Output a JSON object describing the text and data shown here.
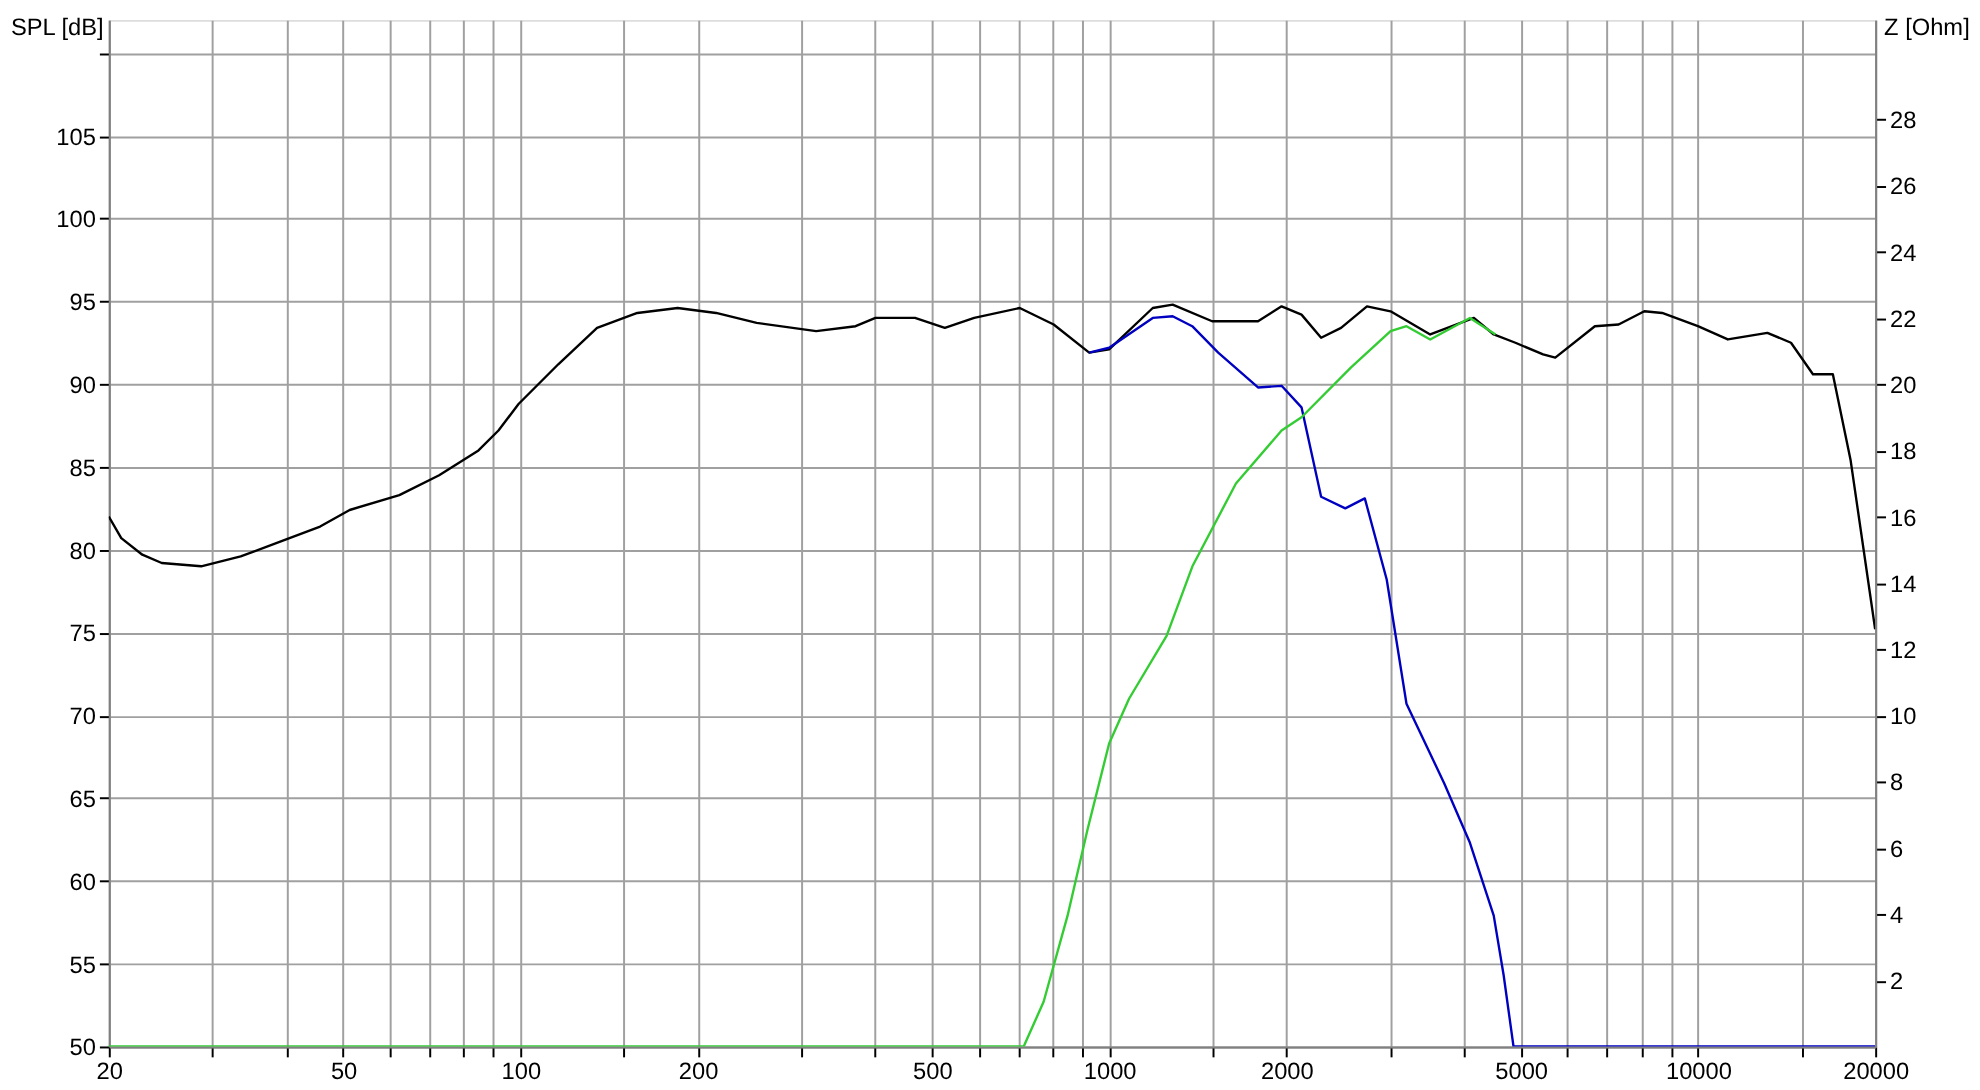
{
  "chart_data": {
    "type": "line",
    "ylabel": "SPL [dB]",
    "y2label": "Z [Ohm]",
    "log": "x",
    "grid": true,
    "legend": false,
    "marker": "none",
    "line_style": "solid",
    "xlim": [
      20,
      20000
    ],
    "xticks": [
      20,
      {
        "value": 30,
        "label": null
      },
      {
        "value": 40,
        "label": null
      },
      50,
      {
        "value": 60,
        "label": null
      },
      {
        "value": 70,
        "label": null
      },
      {
        "value": 80,
        "label": null
      },
      {
        "value": 90,
        "label": null
      },
      100,
      {
        "value": 150,
        "label": null
      },
      200,
      {
        "value": 300,
        "label": null
      },
      {
        "value": 400,
        "label": null
      },
      500,
      {
        "value": 600,
        "label": null
      },
      {
        "value": 700,
        "label": null
      },
      {
        "value": 800,
        "label": null
      },
      {
        "value": 900,
        "label": null
      },
      1000,
      {
        "value": 1500,
        "label": null
      },
      2000,
      {
        "value": 3000,
        "label": null
      },
      {
        "value": 4000,
        "label": null
      },
      5000,
      {
        "value": 6000,
        "label": null
      },
      {
        "value": 7000,
        "label": null
      },
      {
        "value": 8000,
        "label": null
      },
      {
        "value": 9000,
        "label": null
      },
      10000,
      {
        "value": 15000,
        "label": null
      },
      20000
    ],
    "ylim": [
      50,
      112
    ],
    "yticks": [
      50,
      55,
      60,
      65,
      70,
      75,
      80,
      85,
      90,
      95,
      100,
      105,
      {
        "value": 110,
        "label": null
      }
    ],
    "y2lim": [
      0,
      31
    ],
    "y2ticks": [
      2,
      4,
      6,
      8,
      10,
      12,
      14,
      16,
      18,
      20,
      22,
      24,
      26,
      28
    ],
    "series": [
      {
        "color": "#000000",
        "x": [
          20,
          21,
          22.8,
          24.6,
          28.7,
          33.5,
          39.2,
          45.7,
          51.3,
          62.3,
          72.8,
          84.9,
          91.8,
          99.3,
          116,
          135,
          158,
          185,
          215,
          252,
          318,
          371,
          401,
          468,
          526,
          590,
          705,
          805,
          925,
          1000,
          1186,
          1282,
          1496,
          1790,
          1963,
          2122,
          2291,
          2477,
          2741,
          3006,
          3510,
          4164,
          4500,
          4898,
          5458,
          5724,
          6683,
          7333,
          8110,
          8695,
          10000,
          11240,
          13120,
          14390,
          15680,
          16950,
          18170,
          20000
        ],
        "values": [
          82.0,
          80.7,
          79.7,
          79.2,
          79.0,
          79.6,
          80.5,
          81.4,
          82.4,
          83.3,
          84.5,
          86.0,
          87.2,
          88.8,
          91.2,
          93.4,
          94.3,
          94.6,
          94.3,
          93.7,
          93.2,
          93.5,
          94.0,
          94.0,
          93.4,
          94.0,
          94.6,
          93.6,
          91.9,
          92.1,
          94.6,
          94.8,
          93.8,
          93.8,
          94.7,
          94.2,
          92.8,
          93.4,
          94.7,
          94.4,
          93.0,
          94.0,
          93.0,
          92.5,
          91.8,
          91.6,
          93.5,
          93.6,
          94.4,
          94.3,
          93.5,
          92.7,
          93.1,
          92.5,
          90.6,
          90.6,
          85.4,
          75.2
        ]
      },
      {
        "color": "#0000c0",
        "x": [
          925,
          1000,
          1186,
          1282,
          1384,
          1532,
          1790,
          1963,
          2122,
          2291,
          2518,
          2718,
          2961,
          3199,
          3707,
          4100,
          4500,
          4678,
          4862,
          20000
        ],
        "values": [
          91.9,
          92.2,
          94.0,
          94.1,
          93.5,
          91.9,
          89.8,
          89.9,
          88.6,
          83.2,
          82.5,
          83.1,
          78.2,
          70.7,
          65.9,
          62.3,
          57.9,
          54.3,
          50,
          50
        ]
      },
      {
        "color": "#33cc33",
        "x": [
          20,
          716,
          774,
          850,
          919,
          1000,
          1081,
          1252,
          1385,
          1642,
          1963,
          2122,
          2573,
          3006,
          3199,
          3510,
          4100,
          4532
        ],
        "values": [
          50,
          50,
          52.7,
          57.9,
          63.1,
          68.3,
          71.0,
          74.8,
          79.0,
          84.0,
          87.2,
          88.0,
          91.0,
          93.2,
          93.5,
          92.7,
          94.0,
          93.0
        ]
      }
    ]
  }
}
